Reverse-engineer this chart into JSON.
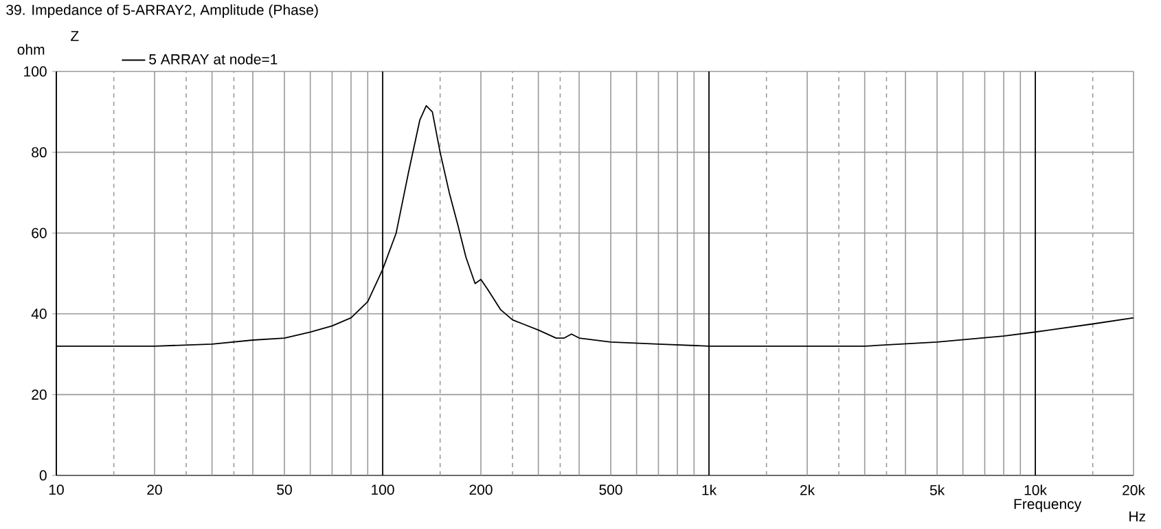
{
  "chart_data": {
    "type": "line",
    "title": "39. Impedance of 5-ARRAY2, Amplitude (Phase)",
    "xlabel": "Frequency",
    "ylabel": "ohm",
    "legend_title": "Z",
    "annotations": [
      "Hz"
    ],
    "log": "x",
    "grid": true,
    "legend": "top left",
    "marker": "none",
    "line_style": "solid",
    "xlim": [
      10,
      20000
    ],
    "ylim": [
      0,
      100
    ],
    "xticks": [
      10,
      20,
      50,
      100,
      200,
      500,
      {
        "value": 1000,
        "label": "1k"
      },
      {
        "value": 2000,
        "label": "2k"
      },
      {
        "value": 5000,
        "label": "5k"
      },
      {
        "value": 10000,
        "label": "10k"
      },
      {
        "value": 20000,
        "label": "20k"
      }
    ],
    "yticks": [
      0,
      20,
      40,
      60,
      80,
      100
    ],
    "series": [
      {
        "name": "5 ARRAY at node=1",
        "color": "#000000",
        "x": [
          10,
          20,
          30,
          40,
          50,
          60,
          70,
          80,
          90,
          100,
          110,
          120,
          130,
          136,
          142,
          150,
          160,
          170,
          180,
          192,
          200,
          210,
          230,
          250,
          300,
          340,
          360,
          379,
          400,
          500,
          700,
          1000,
          2000,
          3000,
          5000,
          8000,
          10000,
          15000,
          20000
        ],
        "values": [
          32,
          32,
          32.5,
          33.5,
          34,
          35.5,
          37,
          39,
          43,
          51,
          60,
          75,
          88,
          91.5,
          90,
          80,
          70,
          62,
          54,
          47.5,
          48.5,
          46,
          41,
          38.5,
          36,
          34,
          34,
          35,
          34,
          33,
          32.5,
          32,
          32,
          32,
          33,
          34.5,
          35.5,
          37.5,
          39
        ]
      }
    ]
  }
}
